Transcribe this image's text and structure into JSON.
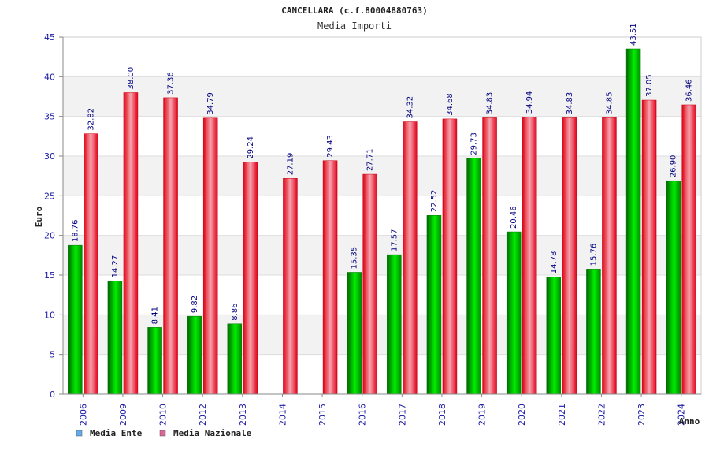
{
  "chart_data": {
    "type": "bar",
    "title": "CANCELLARA (c.f.80004880763)",
    "subtitle": "Media Importi",
    "xlabel": "Anno",
    "ylabel": "Euro",
    "ylim": [
      0,
      45
    ],
    "yticks": [
      0,
      5,
      10,
      15,
      20,
      25,
      30,
      35,
      40,
      45
    ],
    "categories": [
      "2006",
      "2009",
      "2010",
      "2012",
      "2013",
      "2014",
      "2015",
      "2016",
      "2017",
      "2018",
      "2019",
      "2020",
      "2021",
      "2022",
      "2023",
      "2024"
    ],
    "series": [
      {
        "name": "Media Ente",
        "color": "#00aa00",
        "legend_color": "#66aaee",
        "values": [
          18.76,
          14.27,
          8.41,
          9.82,
          8.86,
          null,
          null,
          15.35,
          17.57,
          22.52,
          29.73,
          20.46,
          14.78,
          15.76,
          43.51,
          26.9
        ],
        "labels": [
          "18.76",
          "14.27",
          "8.41",
          "9.82",
          "8.86",
          "",
          "",
          "15.35",
          "17.57",
          "22.52",
          "29.73",
          "20.46",
          "14.78",
          "15.76",
          "43.51",
          "26.90"
        ]
      },
      {
        "name": "Media Nazionale",
        "color": "#ee1c2e",
        "legend_color": "#dd6699",
        "values": [
          32.82,
          38.0,
          37.36,
          34.79,
          29.24,
          27.19,
          29.43,
          27.71,
          34.32,
          34.68,
          34.83,
          34.94,
          34.83,
          34.85,
          37.05,
          36.46
        ],
        "labels": [
          "32.82",
          "38.00",
          "37.36",
          "34.79",
          "29.24",
          "27.19",
          "29.43",
          "27.71",
          "34.32",
          "34.68",
          "34.83",
          "34.94",
          "34.83",
          "34.85",
          "37.05",
          "36.46"
        ]
      }
    ],
    "grid": true,
    "legend_position": "bottom-left"
  }
}
